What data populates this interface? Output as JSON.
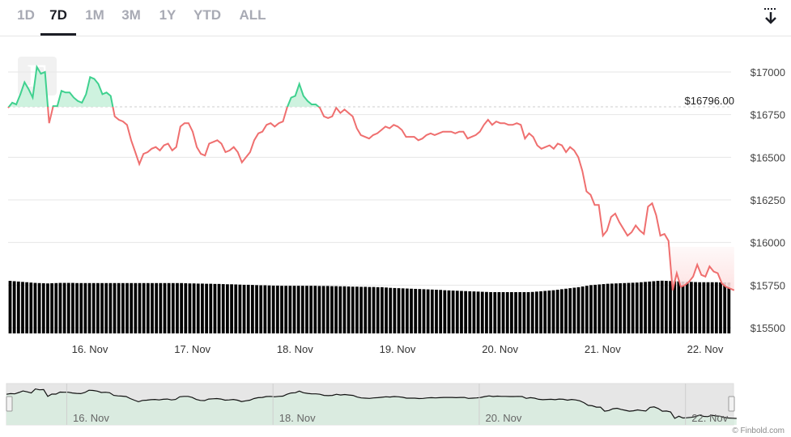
{
  "range_tabs": [
    "1D",
    "7D",
    "1M",
    "3M",
    "1Y",
    "YTD",
    "ALL"
  ],
  "active_tab": "7D",
  "export_icon": "download-arrow-icon",
  "watermark_text": "F",
  "credit": "© Finbold.com",
  "colors": {
    "up_line": "#3fd18f",
    "up_fill": "#c9f1dc",
    "down_line": "#ef6f6f",
    "down_fill": "#fde3e3",
    "volume": "#000000",
    "grid": "#e6e6e6",
    "navigator_fill": "#d7ecdf",
    "navigator_mask": "#e6e6e6"
  },
  "chart_data": {
    "type": "line",
    "reference_value": 16796.0,
    "reference_label": "$16796.00",
    "ylim": [
      15500,
      17100
    ],
    "y_ticks": [
      17000,
      16750,
      16500,
      16250,
      16000,
      15750,
      15500
    ],
    "y_tick_labels": [
      "$17000",
      "$16750",
      "$16500",
      "$16250",
      "$16000",
      "$15750",
      "$15500"
    ],
    "x_range": [
      0,
      7.05
    ],
    "x_ticks": [
      0.6,
      1.6,
      2.6,
      3.6,
      4.6,
      5.6,
      6.6
    ],
    "x_tick_labels": [
      "16. Nov",
      "17. Nov",
      "18. Nov",
      "19. Nov",
      "20. Nov",
      "21. Nov",
      "22. Nov"
    ],
    "price_x_start": 0.0,
    "price_x_step": 0.04,
    "price": [
      16790,
      16820,
      16810,
      16870,
      16940,
      16900,
      16850,
      17030,
      16990,
      17000,
      16700,
      16800,
      16800,
      16890,
      16880,
      16880,
      16850,
      16830,
      16820,
      16870,
      16970,
      16960,
      16930,
      16870,
      16880,
      16860,
      16740,
      16720,
      16710,
      16690,
      16600,
      16530,
      16460,
      16520,
      16530,
      16550,
      16560,
      16540,
      16570,
      16580,
      16540,
      16560,
      16680,
      16700,
      16700,
      16650,
      16560,
      16520,
      16510,
      16580,
      16590,
      16600,
      16580,
      16530,
      16540,
      16560,
      16530,
      16470,
      16500,
      16530,
      16600,
      16640,
      16650,
      16690,
      16700,
      16680,
      16700,
      16710,
      16790,
      16850,
      16860,
      16930,
      16860,
      16830,
      16810,
      16810,
      16790,
      16740,
      16730,
      16740,
      16790,
      16760,
      16780,
      16760,
      16740,
      16670,
      16630,
      16620,
      16610,
      16630,
      16640,
      16660,
      16680,
      16670,
      16690,
      16680,
      16660,
      16620,
      16620,
      16620,
      16600,
      16610,
      16630,
      16640,
      16630,
      16640,
      16650,
      16650,
      16650,
      16640,
      16650,
      16650,
      16610,
      16620,
      16630,
      16650,
      16690,
      16720,
      16690,
      16710,
      16700,
      16700,
      16690,
      16690,
      16700,
      16690,
      16610,
      16640,
      16620,
      16570,
      16550,
      16560,
      16570,
      16550,
      16580,
      16570,
      16530,
      16560,
      16540,
      16500,
      16420,
      16300,
      16280,
      16220,
      16220,
      16040,
      16070,
      16150,
      16170,
      16120,
      16080,
      16040,
      16060,
      16100,
      16070,
      16050,
      16210,
      16230,
      16160,
      16040,
      16050,
      16010,
      15720,
      15820,
      15740,
      15750,
      15770,
      15800,
      15870,
      15810,
      15800,
      15860,
      15830,
      15820,
      15760,
      15740,
      15730,
      15720
    ],
    "volume_base": 15500,
    "volume": [
      15775,
      15773,
      15771,
      15769,
      15767,
      15765,
      15763,
      15762,
      15761,
      15760,
      15761,
      15762,
      15763,
      15763,
      15763,
      15763,
      15762,
      15762,
      15762,
      15762,
      15762,
      15762,
      15762,
      15762,
      15762,
      15762,
      15762,
      15762,
      15762,
      15762,
      15762,
      15762,
      15762,
      15762,
      15762,
      15762,
      15762,
      15762,
      15762,
      15762,
      15762,
      15762,
      15761,
      15760,
      15760,
      15759,
      15759,
      15758,
      15758,
      15757,
      15757,
      15756,
      15755,
      15755,
      15754,
      15753,
      15752,
      15752,
      15751,
      15750,
      15749,
      15749,
      15748,
      15747,
      15747,
      15746,
      15746,
      15746,
      15746,
      15746,
      15746,
      15746,
      15746,
      15746,
      15745,
      15745,
      15745,
      15744,
      15744,
      15743,
      15743,
      15742,
      15741,
      15741,
      15740,
      15740,
      15739,
      15739,
      15738,
      15738,
      15736,
      15734,
      15733,
      15732,
      15731,
      15730,
      15729,
      15728,
      15727,
      15726,
      15725,
      15724,
      15723,
      15722,
      15720,
      15719,
      15718,
      15717,
      15716,
      15715,
      15714,
      15713,
      15712,
      15711,
      15710,
      15709,
      15709,
      15709,
      15709,
      15709,
      15709,
      15709,
      15709,
      15709,
      15709,
      15710,
      15712,
      15714,
      15716,
      15718,
      15720,
      15723,
      15726,
      15729,
      15732,
      15735,
      15738,
      15742,
      15746,
      15750,
      15752,
      15754,
      15756,
      15758,
      15759,
      15760,
      15761,
      15762,
      15763,
      15764,
      15765,
      15767,
      15769,
      15771,
      15773,
      15775,
      15776,
      15775,
      15774,
      15773,
      15772,
      15771,
      15770,
      15769,
      15768,
      15767,
      15767,
      15767,
      15767,
      15767,
      15766,
      15766,
      15765
    ],
    "navigator_ticks": [
      0.6,
      2.6,
      4.6,
      6.6
    ],
    "navigator_tick_labels": [
      "16. Nov",
      "18. Nov",
      "20. Nov",
      "22. Nov"
    ]
  }
}
